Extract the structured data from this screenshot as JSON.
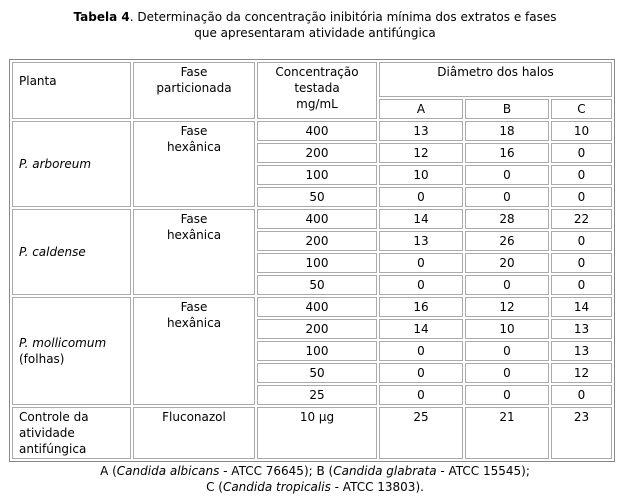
{
  "caption": {
    "label": "Tabela 4",
    "text_line1": ". Determinação da concentração inibitória mínima dos extratos e fases",
    "text_line2": "que apresentaram atividade antifúngica"
  },
  "headers": {
    "planta": "Planta",
    "fase": [
      "Fase",
      "particionada"
    ],
    "conc": [
      "Concentração",
      "testada",
      "mg/mL"
    ],
    "diametro": "Diâmetro dos halos",
    "cols": [
      "A",
      "B",
      "C"
    ]
  },
  "groups": [
    {
      "plant": [
        "P. arboreum"
      ],
      "italic_lines": [
        true
      ],
      "phase": [
        "Fase",
        "hexânica"
      ],
      "rows": [
        [
          "400",
          "13",
          "18",
          "10"
        ],
        [
          "200",
          "12",
          "16",
          "0"
        ],
        [
          "100",
          "10",
          "0",
          "0"
        ],
        [
          "50",
          "0",
          "0",
          "0"
        ]
      ]
    },
    {
      "plant": [
        "P. caldense"
      ],
      "italic_lines": [
        true
      ],
      "phase": [
        "Fase",
        "hexânica"
      ],
      "rows": [
        [
          "400",
          "14",
          "28",
          "22"
        ],
        [
          "200",
          "13",
          "26",
          "0"
        ],
        [
          "100",
          "0",
          "20",
          "0"
        ],
        [
          "50",
          "0",
          "0",
          "0"
        ]
      ]
    },
    {
      "plant": [
        "P. mollicomum",
        "(folhas)"
      ],
      "italic_lines": [
        true,
        false
      ],
      "phase": [
        "Fase",
        "hexânica"
      ],
      "rows": [
        [
          "400",
          "16",
          "12",
          "14"
        ],
        [
          "200",
          "14",
          "10",
          "13"
        ],
        [
          "100",
          "0",
          "0",
          "13"
        ],
        [
          "50",
          "0",
          "0",
          "12"
        ],
        [
          "25",
          "0",
          "0",
          "0"
        ]
      ]
    }
  ],
  "control": {
    "label": [
      "Controle da",
      "atividade",
      "antifúngica"
    ],
    "phase": "Fluconazol",
    "conc": "10 µg",
    "values": [
      "25",
      "21",
      "23"
    ]
  },
  "footnote": {
    "line1": [
      {
        "t": "A (",
        "i": false
      },
      {
        "t": "Candida albicans",
        "i": true
      },
      {
        "t": " - ATCC 76645); B (",
        "i": false
      },
      {
        "t": "Candida glabrata",
        "i": true
      },
      {
        "t": " - ATCC 15545);",
        "i": false
      }
    ],
    "line2": [
      {
        "t": "C (",
        "i": false
      },
      {
        "t": "Candida tropicalis",
        "i": true
      },
      {
        "t": " - ATCC 13803).",
        "i": false
      }
    ]
  }
}
